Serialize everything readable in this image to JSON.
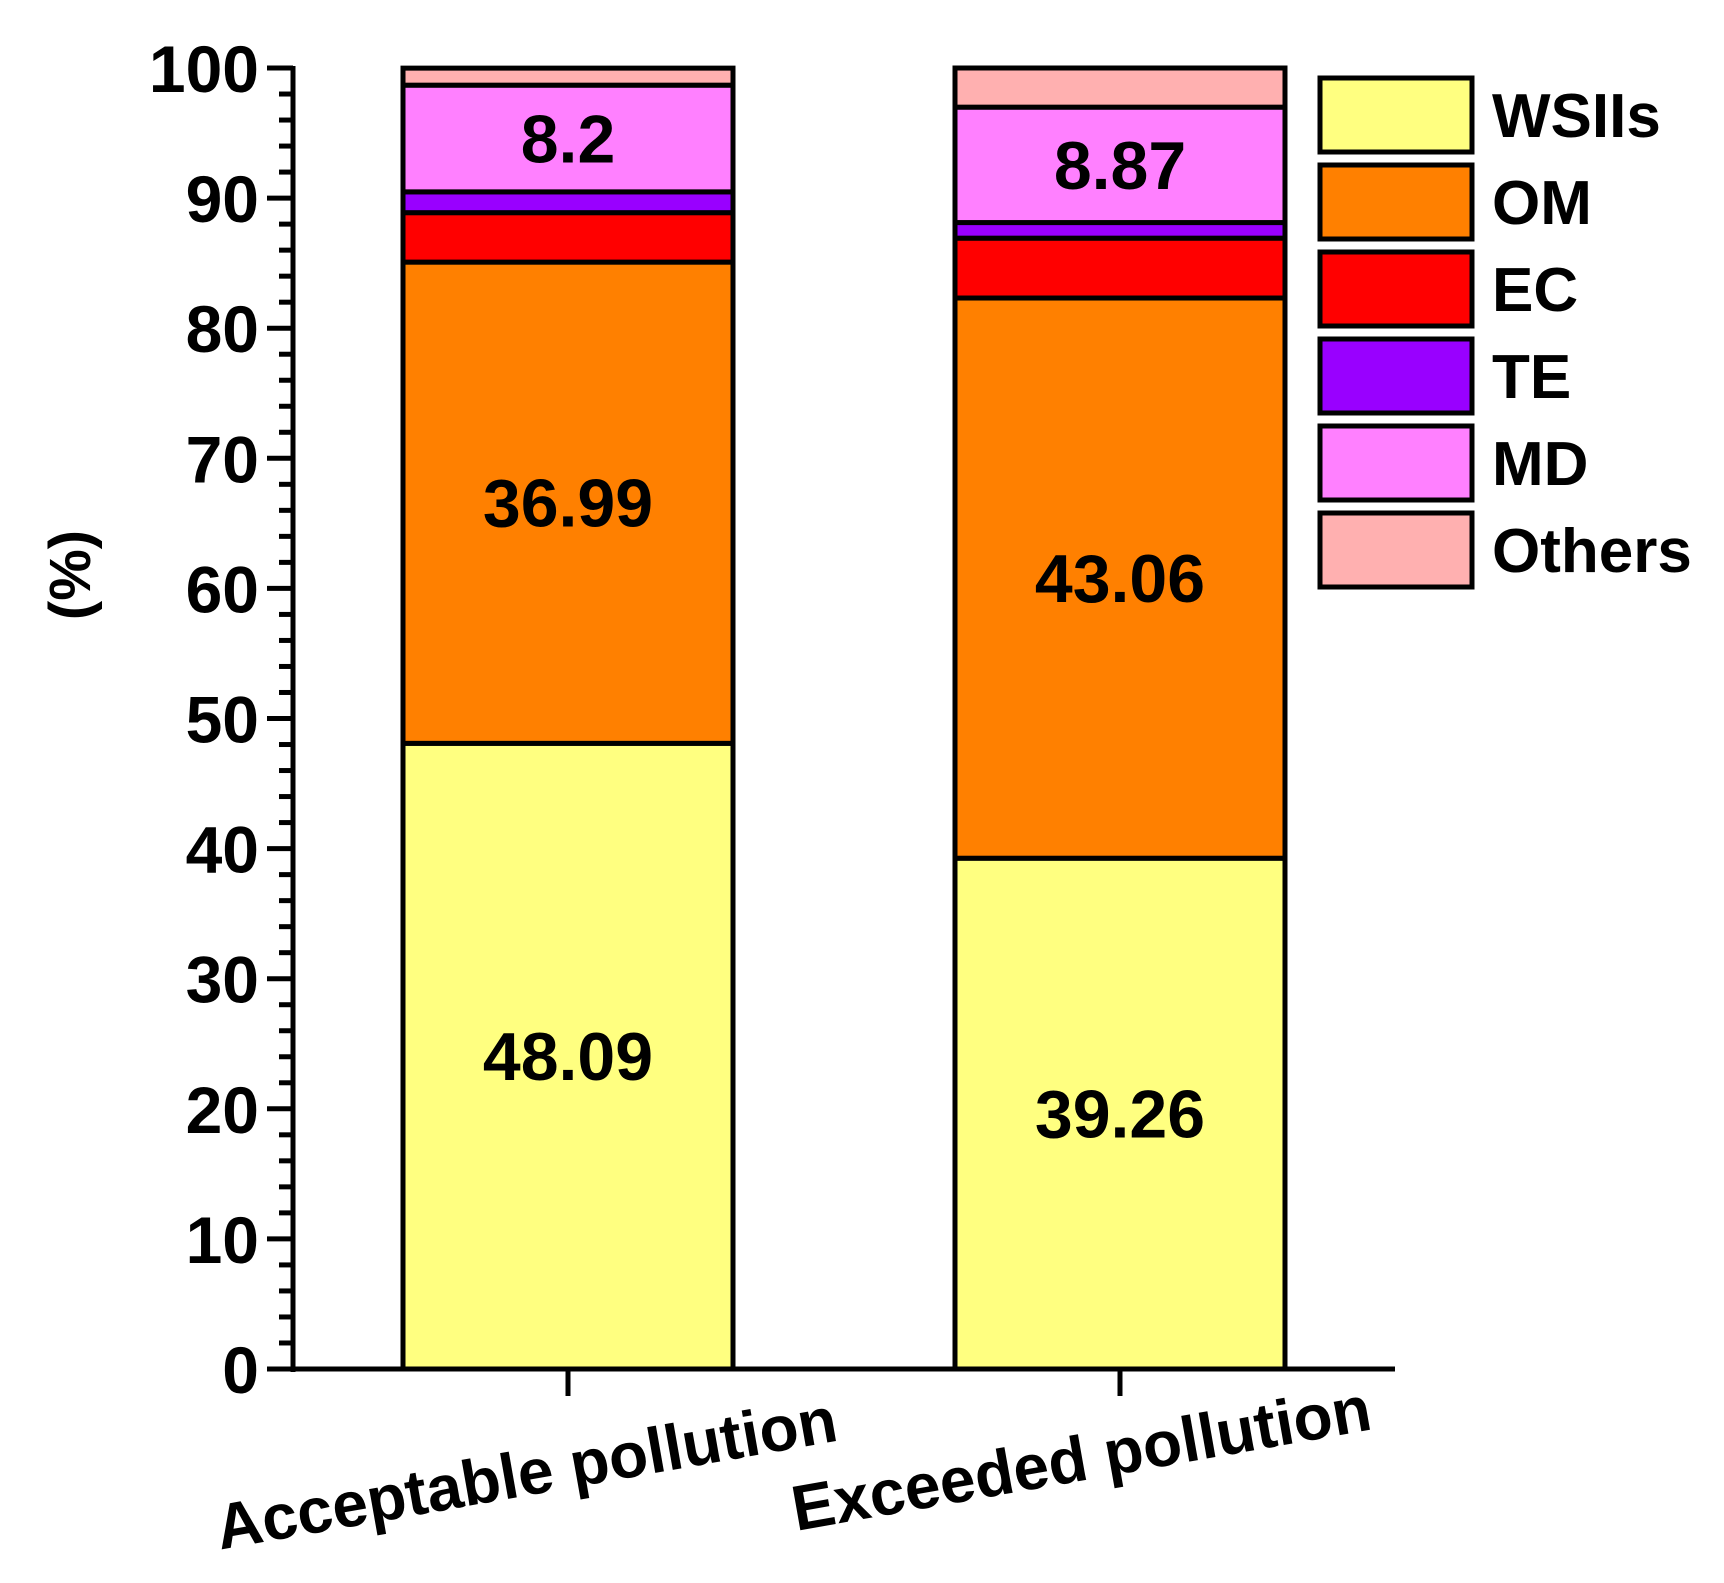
{
  "chart_data": {
    "type": "bar",
    "stacked": true,
    "title": "",
    "xlabel": "",
    "ylabel": "(%)",
    "ylim": [
      0,
      100
    ],
    "yticks": [
      0,
      10,
      20,
      30,
      40,
      50,
      60,
      70,
      80,
      90,
      100
    ],
    "categories": [
      "Acceptable pollution",
      "Exceeded pollution"
    ],
    "series": [
      {
        "name": "WSIIs",
        "color": "#ffff80",
        "values": [
          48.09,
          39.26
        ],
        "labels": [
          "48.09",
          "39.26"
        ]
      },
      {
        "name": "OM",
        "color": "#ff8000",
        "values": [
          36.99,
          43.06
        ],
        "labels": [
          "36.99",
          "43.06"
        ]
      },
      {
        "name": "EC",
        "color": "#ff0000",
        "values": [
          3.8,
          4.6
        ],
        "labels": [
          "",
          ""
        ]
      },
      {
        "name": "TE",
        "color": "#9900ff",
        "values": [
          1.6,
          1.2
        ],
        "labels": [
          "",
          ""
        ]
      },
      {
        "name": "MD",
        "color": "#ff80ff",
        "values": [
          8.2,
          8.87
        ],
        "labels": [
          "8.2",
          "8.87"
        ]
      },
      {
        "name": "Others",
        "color": "#ffb0b0",
        "values": [
          1.31,
          3.01
        ],
        "labels": [
          "",
          ""
        ]
      }
    ],
    "legend": {
      "position": "top-right"
    }
  }
}
